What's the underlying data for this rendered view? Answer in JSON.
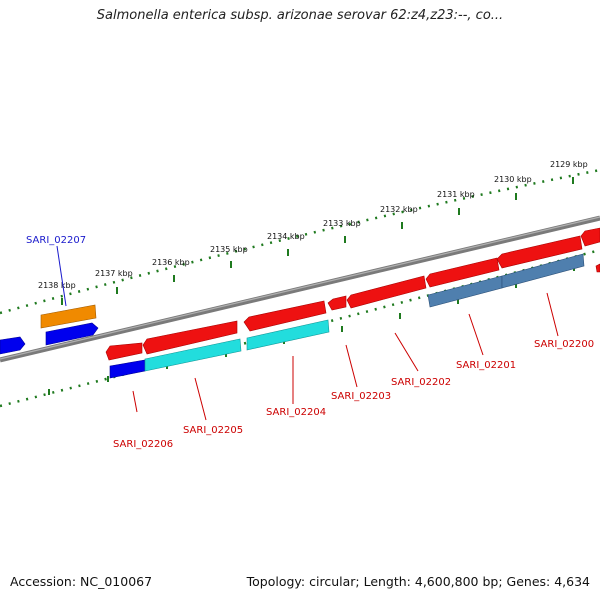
{
  "header": {
    "title": "Salmonella enterica subsp. arizonae serovar 62:z4,z23:--, co..."
  },
  "footer": {
    "accession": "Accession: NC_010067",
    "summary": "Topology: circular; Length: 4,600,800 bp; Genes: 4,634"
  },
  "ticks": [
    {
      "label": "2138 kbp"
    },
    {
      "label": "2137 kbp"
    },
    {
      "label": "2136 kbp"
    },
    {
      "label": "2135 kbp"
    },
    {
      "label": "2134 kbp"
    },
    {
      "label": "2133 kbp"
    },
    {
      "label": "2132 kbp"
    },
    {
      "label": "2131 kbp"
    },
    {
      "label": "2130 kbp"
    },
    {
      "label": "2129 kbp"
    }
  ],
  "genes": [
    {
      "label": "SARI_02207",
      "color": "#1a1acc"
    },
    {
      "label": "SARI_02206",
      "color": "#cc0000"
    },
    {
      "label": "SARI_02205",
      "color": "#cc0000"
    },
    {
      "label": "SARI_02204",
      "color": "#cc0000"
    },
    {
      "label": "SARI_02203",
      "color": "#cc0000"
    },
    {
      "label": "SARI_02202",
      "color": "#cc0000"
    },
    {
      "label": "SARI_02201",
      "color": "#cc0000"
    },
    {
      "label": "SARI_02200",
      "color": "#cc0000"
    }
  ],
  "colors": {
    "backbone": "#808080",
    "tick_mark": "#1f7a1f",
    "forward_gene": "#ee1111",
    "reverse_gene_cyan": "#22dddd",
    "reverse_gene_blue": "#0000ee",
    "reverse_gene_steel": "#4f7fae",
    "orange_gene": "#f08a00"
  }
}
